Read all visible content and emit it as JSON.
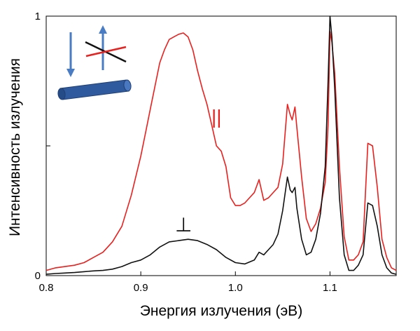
{
  "chart_data": {
    "type": "line",
    "xlabel": "Энергия излучения (эВ)",
    "ylabel": "Интенсивность излучения",
    "xlim": [
      0.8,
      1.17
    ],
    "ylim": [
      0,
      1
    ],
    "x_ticks": [
      0.8,
      0.9,
      1.0,
      1.1
    ],
    "x_tick_labels": [
      "0.8",
      "0.9",
      "1.0",
      "1.1"
    ],
    "y_ticks": [
      0,
      0.5,
      1
    ],
    "y_tick_labels": [
      "0",
      "",
      "1"
    ],
    "grid": false,
    "series": [
      {
        "name": "||",
        "color": "#e8201e",
        "x": [
          0.8,
          0.81,
          0.82,
          0.83,
          0.84,
          0.85,
          0.86,
          0.87,
          0.88,
          0.89,
          0.9,
          0.905,
          0.91,
          0.915,
          0.92,
          0.925,
          0.93,
          0.935,
          0.94,
          0.945,
          0.95,
          0.955,
          0.96,
          0.965,
          0.97,
          0.975,
          0.98,
          0.985,
          0.99,
          0.995,
          1.0,
          1.005,
          1.01,
          1.015,
          1.02,
          1.025,
          1.03,
          1.035,
          1.04,
          1.045,
          1.05,
          1.055,
          1.058,
          1.06,
          1.063,
          1.065,
          1.07,
          1.075,
          1.08,
          1.085,
          1.09,
          1.095,
          1.098,
          1.1,
          1.102,
          1.105,
          1.11,
          1.115,
          1.12,
          1.125,
          1.13,
          1.135,
          1.14,
          1.145,
          1.15,
          1.155,
          1.16,
          1.165,
          1.17
        ],
        "y": [
          0.02,
          0.03,
          0.035,
          0.04,
          0.05,
          0.07,
          0.09,
          0.13,
          0.19,
          0.31,
          0.46,
          0.55,
          0.64,
          0.73,
          0.82,
          0.87,
          0.91,
          0.92,
          0.93,
          0.935,
          0.92,
          0.87,
          0.79,
          0.72,
          0.66,
          0.58,
          0.5,
          0.48,
          0.42,
          0.3,
          0.27,
          0.27,
          0.28,
          0.3,
          0.32,
          0.37,
          0.29,
          0.3,
          0.32,
          0.34,
          0.43,
          0.66,
          0.62,
          0.6,
          0.65,
          0.57,
          0.38,
          0.22,
          0.17,
          0.2,
          0.26,
          0.36,
          0.58,
          0.94,
          0.9,
          0.78,
          0.42,
          0.15,
          0.06,
          0.06,
          0.08,
          0.13,
          0.51,
          0.5,
          0.34,
          0.14,
          0.07,
          0.03,
          0.02
        ]
      },
      {
        "name": "⊥",
        "color": "#111111",
        "x": [
          0.8,
          0.81,
          0.82,
          0.83,
          0.84,
          0.85,
          0.86,
          0.87,
          0.88,
          0.89,
          0.9,
          0.91,
          0.92,
          0.93,
          0.94,
          0.95,
          0.96,
          0.97,
          0.98,
          0.99,
          1.0,
          1.01,
          1.02,
          1.025,
          1.03,
          1.035,
          1.04,
          1.045,
          1.05,
          1.055,
          1.058,
          1.06,
          1.063,
          1.065,
          1.07,
          1.075,
          1.08,
          1.085,
          1.09,
          1.095,
          1.098,
          1.1,
          1.102,
          1.105,
          1.11,
          1.115,
          1.12,
          1.125,
          1.13,
          1.135,
          1.14,
          1.145,
          1.15,
          1.155,
          1.16,
          1.165,
          1.17
        ],
        "y": [
          0.005,
          0.008,
          0.01,
          0.012,
          0.015,
          0.018,
          0.02,
          0.025,
          0.035,
          0.05,
          0.06,
          0.08,
          0.11,
          0.13,
          0.135,
          0.14,
          0.135,
          0.12,
          0.1,
          0.07,
          0.05,
          0.045,
          0.06,
          0.09,
          0.08,
          0.1,
          0.12,
          0.16,
          0.25,
          0.38,
          0.33,
          0.32,
          0.34,
          0.26,
          0.14,
          0.08,
          0.09,
          0.14,
          0.24,
          0.42,
          0.75,
          1.0,
          0.92,
          0.72,
          0.3,
          0.08,
          0.02,
          0.02,
          0.04,
          0.08,
          0.28,
          0.27,
          0.19,
          0.08,
          0.03,
          0.01,
          0.005
        ]
      }
    ],
    "annotations": {
      "parallel": "||",
      "perpendicular": "⊥"
    }
  },
  "inset": {
    "wire_color": "#2f5a9e",
    "arrow_color": "#4a7cc4",
    "cross_red": "#e8201e",
    "cross_black": "#111111"
  }
}
